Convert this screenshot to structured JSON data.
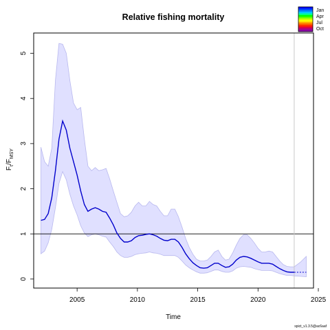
{
  "chart_data": {
    "type": "line",
    "title": "Relative fishing mortality",
    "xlabel": "Time",
    "ylabel": {
      "main": "F",
      "sub1": "t",
      "sep": "/F",
      "sub2": "MSY"
    },
    "xlim": [
      2001.4,
      2024.6
    ],
    "ylim": [
      -0.2,
      5.45
    ],
    "xticks": [
      "2005",
      "2010",
      "2015",
      "2020",
      "2025"
    ],
    "yticks": [
      "0",
      "1",
      "2",
      "3",
      "4",
      "5"
    ],
    "reference_line_y": 1,
    "vertical_line_x": 2023,
    "series": [
      {
        "color": "#0000cc",
        "x": [
          2002.0,
          2002.3,
          2002.6,
          2002.9,
          2003.2,
          2003.5,
          2003.8,
          2004.1,
          2004.4,
          2004.7,
          2005.0,
          2005.3,
          2005.6,
          2005.9,
          2006.2,
          2006.5,
          2006.8,
          2007.1,
          2007.4,
          2007.7,
          2008.0,
          2008.3,
          2008.6,
          2008.9,
          2009.2,
          2009.5,
          2009.8,
          2010.1,
          2010.4,
          2010.7,
          2011.0,
          2011.3,
          2011.6,
          2011.9,
          2012.2,
          2012.5,
          2012.8,
          2013.1,
          2013.4,
          2013.7,
          2014.0,
          2014.3,
          2014.6,
          2014.9,
          2015.2,
          2015.5,
          2015.8,
          2016.1,
          2016.4,
          2016.7,
          2017.0,
          2017.3,
          2017.6,
          2017.9,
          2018.2,
          2018.5,
          2018.8,
          2019.1,
          2019.4,
          2019.7,
          2020.0,
          2020.3,
          2020.6,
          2020.9,
          2021.2,
          2021.5,
          2021.8,
          2022.1,
          2022.4,
          2022.7,
          2023.0
        ],
        "y": [
          1.3,
          1.32,
          1.45,
          1.8,
          2.4,
          3.1,
          3.5,
          3.3,
          2.9,
          2.6,
          2.3,
          1.95,
          1.65,
          1.5,
          1.55,
          1.58,
          1.55,
          1.5,
          1.48,
          1.35,
          1.2,
          1.02,
          0.9,
          0.82,
          0.82,
          0.85,
          0.92,
          0.96,
          0.97,
          0.99,
          1.0,
          0.98,
          0.95,
          0.9,
          0.86,
          0.85,
          0.88,
          0.88,
          0.82,
          0.7,
          0.56,
          0.45,
          0.36,
          0.3,
          0.25,
          0.24,
          0.25,
          0.3,
          0.35,
          0.35,
          0.3,
          0.26,
          0.27,
          0.33,
          0.42,
          0.48,
          0.5,
          0.49,
          0.46,
          0.42,
          0.38,
          0.35,
          0.35,
          0.35,
          0.33,
          0.28,
          0.23,
          0.19,
          0.16,
          0.15,
          0.15
        ]
      },
      {
        "color": "#0000cc",
        "dashed": true,
        "x": [
          2023.0,
          2024.0
        ],
        "y": [
          0.15,
          0.15
        ]
      }
    ],
    "confidence_band": {
      "color": "#e0e0ff",
      "edge": "#b8b8ee",
      "x": [
        2002.0,
        2002.3,
        2002.6,
        2002.9,
        2003.2,
        2003.5,
        2003.8,
        2004.1,
        2004.4,
        2004.7,
        2005.0,
        2005.3,
        2005.6,
        2005.9,
        2006.2,
        2006.5,
        2006.8,
        2007.1,
        2007.4,
        2007.7,
        2008.0,
        2008.3,
        2008.6,
        2008.9,
        2009.2,
        2009.5,
        2009.8,
        2010.1,
        2010.4,
        2010.7,
        2011.0,
        2011.3,
        2011.6,
        2011.9,
        2012.2,
        2012.5,
        2012.8,
        2013.1,
        2013.4,
        2013.7,
        2014.0,
        2014.3,
        2014.6,
        2014.9,
        2015.2,
        2015.5,
        2015.8,
        2016.1,
        2016.4,
        2016.7,
        2017.0,
        2017.3,
        2017.6,
        2017.9,
        2018.2,
        2018.5,
        2018.8,
        2019.1,
        2019.4,
        2019.7,
        2020.0,
        2020.3,
        2020.6,
        2020.9,
        2021.2,
        2021.5,
        2021.8,
        2022.1,
        2022.4,
        2022.7,
        2023.0,
        2023.5,
        2024.0
      ],
      "upper": [
        2.92,
        2.6,
        2.5,
        2.9,
        4.4,
        5.22,
        5.2,
        5.0,
        4.4,
        3.9,
        3.75,
        3.8,
        3.1,
        2.5,
        2.4,
        2.47,
        2.4,
        2.42,
        2.45,
        2.22,
        1.95,
        1.7,
        1.45,
        1.38,
        1.4,
        1.48,
        1.62,
        1.7,
        1.62,
        1.62,
        1.72,
        1.65,
        1.62,
        1.5,
        1.4,
        1.4,
        1.55,
        1.55,
        1.38,
        1.15,
        0.9,
        0.7,
        0.55,
        0.44,
        0.4,
        0.4,
        0.42,
        0.5,
        0.6,
        0.64,
        0.5,
        0.42,
        0.44,
        0.58,
        0.75,
        0.9,
        0.98,
        0.98,
        0.9,
        0.8,
        0.68,
        0.6,
        0.6,
        0.62,
        0.6,
        0.5,
        0.4,
        0.32,
        0.28,
        0.27,
        0.27,
        0.37,
        0.5
      ],
      "lower": [
        0.56,
        0.62,
        0.8,
        1.1,
        1.58,
        2.12,
        2.38,
        2.2,
        1.88,
        1.62,
        1.42,
        1.18,
        1.02,
        0.94,
        0.98,
        1.0,
        0.98,
        0.95,
        0.93,
        0.82,
        0.72,
        0.6,
        0.52,
        0.48,
        0.48,
        0.5,
        0.54,
        0.56,
        0.57,
        0.58,
        0.6,
        0.58,
        0.57,
        0.55,
        0.52,
        0.52,
        0.52,
        0.52,
        0.48,
        0.4,
        0.31,
        0.25,
        0.2,
        0.16,
        0.13,
        0.13,
        0.14,
        0.17,
        0.2,
        0.2,
        0.17,
        0.15,
        0.15,
        0.18,
        0.24,
        0.27,
        0.28,
        0.27,
        0.26,
        0.23,
        0.21,
        0.19,
        0.19,
        0.19,
        0.18,
        0.15,
        0.12,
        0.1,
        0.08,
        0.08,
        0.07,
        0.06,
        0.05
      ]
    },
    "legend": {
      "placement": "top-right",
      "entries": [
        "Jan",
        "Apr",
        "Jul",
        "Oct"
      ],
      "colors": [
        "#0000ff",
        "#0044ff",
        "#0088ff",
        "#00ccff",
        "#00ff88",
        "#00ff00",
        "#66ff00",
        "#ccff00",
        "#ffff00",
        "#ffaa00",
        "#ff6600",
        "#ff2200",
        "#dd0044",
        "#aa0088",
        "#8800aa"
      ]
    },
    "footnote": "spict_v1.3.5@ac6aaf"
  }
}
